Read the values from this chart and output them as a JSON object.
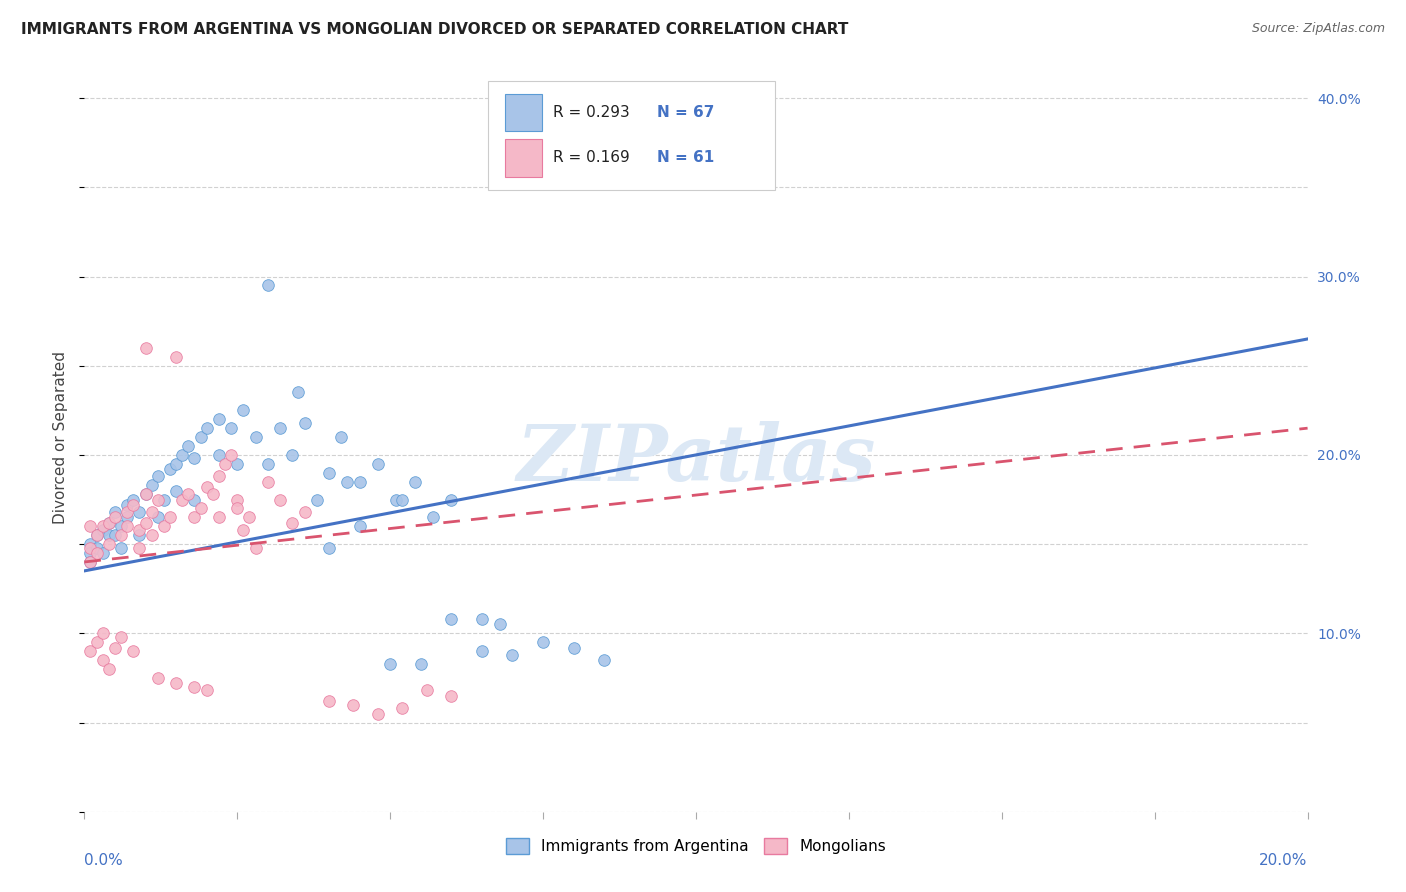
{
  "title": "IMMIGRANTS FROM ARGENTINA VS MONGOLIAN DIVORCED OR SEPARATED CORRELATION CHART",
  "source": "Source: ZipAtlas.com",
  "ylabel": "Divorced or Separated",
  "legend_blue_r": "R = 0.293",
  "legend_blue_n": "N = 67",
  "legend_pink_r": "R = 0.169",
  "legend_pink_n": "N = 61",
  "legend_label_blue": "Immigrants from Argentina",
  "legend_label_pink": "Mongolians",
  "blue_color": "#a8c4e8",
  "pink_color": "#f5b8c8",
  "blue_edge_color": "#5b9bd5",
  "pink_edge_color": "#e87a9f",
  "blue_line_color": "#4472c4",
  "pink_line_color": "#d9546e",
  "axis_label_color": "#4472c4",
  "watermark_color": "#dce8f5",
  "watermark": "ZIPatlas",
  "xlim": [
    0.0,
    0.2
  ],
  "ylim": [
    0.0,
    0.42
  ],
  "ytick_vals": [
    0.0,
    0.1,
    0.2,
    0.3,
    0.4
  ],
  "ytick_labels": [
    "",
    "10.0%",
    "20.0%",
    "30.0%",
    "40.0%"
  ],
  "xtick_vals": [
    0.0,
    0.025,
    0.05,
    0.075,
    0.1,
    0.125,
    0.15,
    0.175,
    0.2
  ],
  "blue_x": [
    0.001,
    0.001,
    0.001,
    0.002,
    0.002,
    0.003,
    0.003,
    0.004,
    0.004,
    0.005,
    0.005,
    0.006,
    0.006,
    0.007,
    0.007,
    0.008,
    0.009,
    0.01,
    0.011,
    0.012,
    0.013,
    0.014,
    0.015,
    0.016,
    0.017,
    0.018,
    0.019,
    0.02,
    0.022,
    0.024,
    0.026,
    0.028,
    0.03,
    0.032,
    0.034,
    0.036,
    0.038,
    0.04,
    0.042,
    0.045,
    0.048,
    0.051,
    0.054,
    0.057,
    0.06,
    0.065,
    0.07,
    0.075,
    0.08,
    0.085,
    0.03,
    0.035,
    0.04,
    0.045,
    0.05,
    0.055,
    0.06,
    0.065,
    0.068,
    0.052,
    0.043,
    0.025,
    0.022,
    0.018,
    0.015,
    0.012,
    0.009
  ],
  "blue_y": [
    0.15,
    0.145,
    0.14,
    0.155,
    0.148,
    0.158,
    0.145,
    0.162,
    0.155,
    0.168,
    0.155,
    0.148,
    0.16,
    0.172,
    0.165,
    0.175,
    0.168,
    0.178,
    0.183,
    0.188,
    0.175,
    0.192,
    0.195,
    0.2,
    0.205,
    0.198,
    0.21,
    0.215,
    0.22,
    0.215,
    0.225,
    0.21,
    0.195,
    0.215,
    0.2,
    0.218,
    0.175,
    0.19,
    0.21,
    0.185,
    0.195,
    0.175,
    0.185,
    0.165,
    0.175,
    0.09,
    0.088,
    0.095,
    0.092,
    0.085,
    0.295,
    0.235,
    0.148,
    0.16,
    0.083,
    0.083,
    0.108,
    0.108,
    0.105,
    0.175,
    0.185,
    0.195,
    0.2,
    0.175,
    0.18,
    0.165,
    0.155
  ],
  "pink_x": [
    0.001,
    0.001,
    0.001,
    0.001,
    0.002,
    0.002,
    0.002,
    0.003,
    0.003,
    0.003,
    0.004,
    0.004,
    0.004,
    0.005,
    0.005,
    0.006,
    0.006,
    0.007,
    0.007,
    0.008,
    0.008,
    0.009,
    0.009,
    0.01,
    0.01,
    0.011,
    0.011,
    0.012,
    0.013,
    0.014,
    0.015,
    0.016,
    0.017,
    0.018,
    0.019,
    0.02,
    0.021,
    0.022,
    0.023,
    0.024,
    0.025,
    0.026,
    0.027,
    0.028,
    0.03,
    0.032,
    0.034,
    0.036,
    0.04,
    0.044,
    0.048,
    0.052,
    0.056,
    0.06,
    0.01,
    0.012,
    0.015,
    0.018,
    0.02,
    0.022,
    0.025
  ],
  "pink_y": [
    0.14,
    0.148,
    0.16,
    0.09,
    0.095,
    0.155,
    0.145,
    0.16,
    0.1,
    0.085,
    0.15,
    0.162,
    0.08,
    0.165,
    0.092,
    0.098,
    0.155,
    0.168,
    0.16,
    0.172,
    0.09,
    0.158,
    0.148,
    0.162,
    0.178,
    0.155,
    0.168,
    0.175,
    0.16,
    0.165,
    0.255,
    0.175,
    0.178,
    0.165,
    0.17,
    0.182,
    0.178,
    0.188,
    0.195,
    0.2,
    0.175,
    0.158,
    0.165,
    0.148,
    0.185,
    0.175,
    0.162,
    0.168,
    0.062,
    0.06,
    0.055,
    0.058,
    0.068,
    0.065,
    0.26,
    0.075,
    0.072,
    0.07,
    0.068,
    0.165,
    0.17
  ]
}
